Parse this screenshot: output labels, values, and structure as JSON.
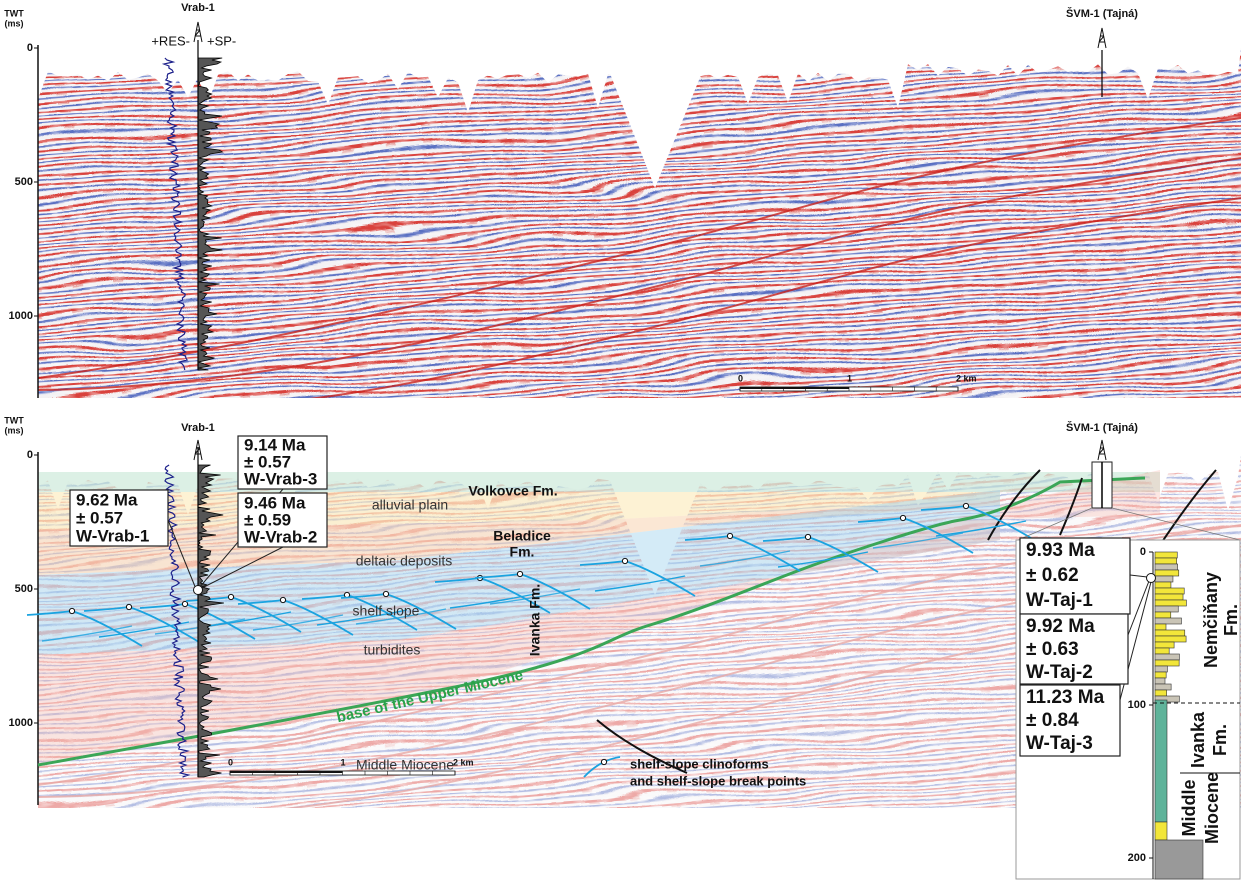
{
  "top_section": {
    "axis_title": "TWT",
    "axis_unit": "(ms)",
    "twt_ticks": [
      "0",
      "500",
      "1000"
    ],
    "well_vrab": {
      "name": "Vrab-1",
      "log_left": "+RES-",
      "log_right": "+SP-"
    },
    "well_svm": {
      "name": "ŠVM-1 (Tajná)"
    },
    "scale_bar": [
      "0",
      "1",
      "2 km"
    ]
  },
  "bottom_section": {
    "axis_title": "TWT",
    "axis_unit": "(ms)",
    "twt_ticks": [
      "0",
      "500",
      "1000"
    ],
    "well_vrab": {
      "name": "Vrab-1"
    },
    "well_svm": {
      "name": "ŠVM-1 (Tajná)"
    },
    "units": {
      "alluvial_plain": "alluvial plain",
      "deltaic": "deltaic deposits",
      "shelf_slope": "shelf slope",
      "turbidites": "turbidites",
      "middle_miocene": "Middle Miocene"
    },
    "formations": {
      "volkovce": "Volkovce Fm.",
      "beladice": [
        "Beladice",
        "Fm."
      ],
      "ivanka": "Ivanka Fm."
    },
    "horizon": "base of the Upper Miocene",
    "vrab_ages": [
      [
        "9.62 Ma",
        "± 0.57",
        "W-Vrab-1"
      ],
      [
        "9.14 Ma",
        "± 0.57",
        "W-Vrab-3"
      ],
      [
        "9.46 Ma",
        "± 0.59",
        "W-Vrab-2"
      ]
    ],
    "scale_bar": [
      "0",
      "1",
      "2 km"
    ],
    "legend": [
      "shelf-slope clinoforms",
      "and shelf-slope break points"
    ]
  },
  "stratigraphic_column": {
    "depth_ticks": [
      "0",
      "100",
      "200"
    ],
    "formations": [
      [
        "Nemčiňany",
        "Fm."
      ],
      [
        "Ivanka",
        "Fm."
      ],
      [
        "Middle",
        "Miocene"
      ]
    ],
    "taj_ages": [
      [
        "9.93 Ma",
        "± 0.62",
        "W-Taj-1"
      ],
      [
        "9.92 Ma",
        "± 0.63",
        "W-Taj-2"
      ],
      [
        "11.23 Ma",
        "± 0.84",
        "W-Taj-3"
      ]
    ]
  }
}
